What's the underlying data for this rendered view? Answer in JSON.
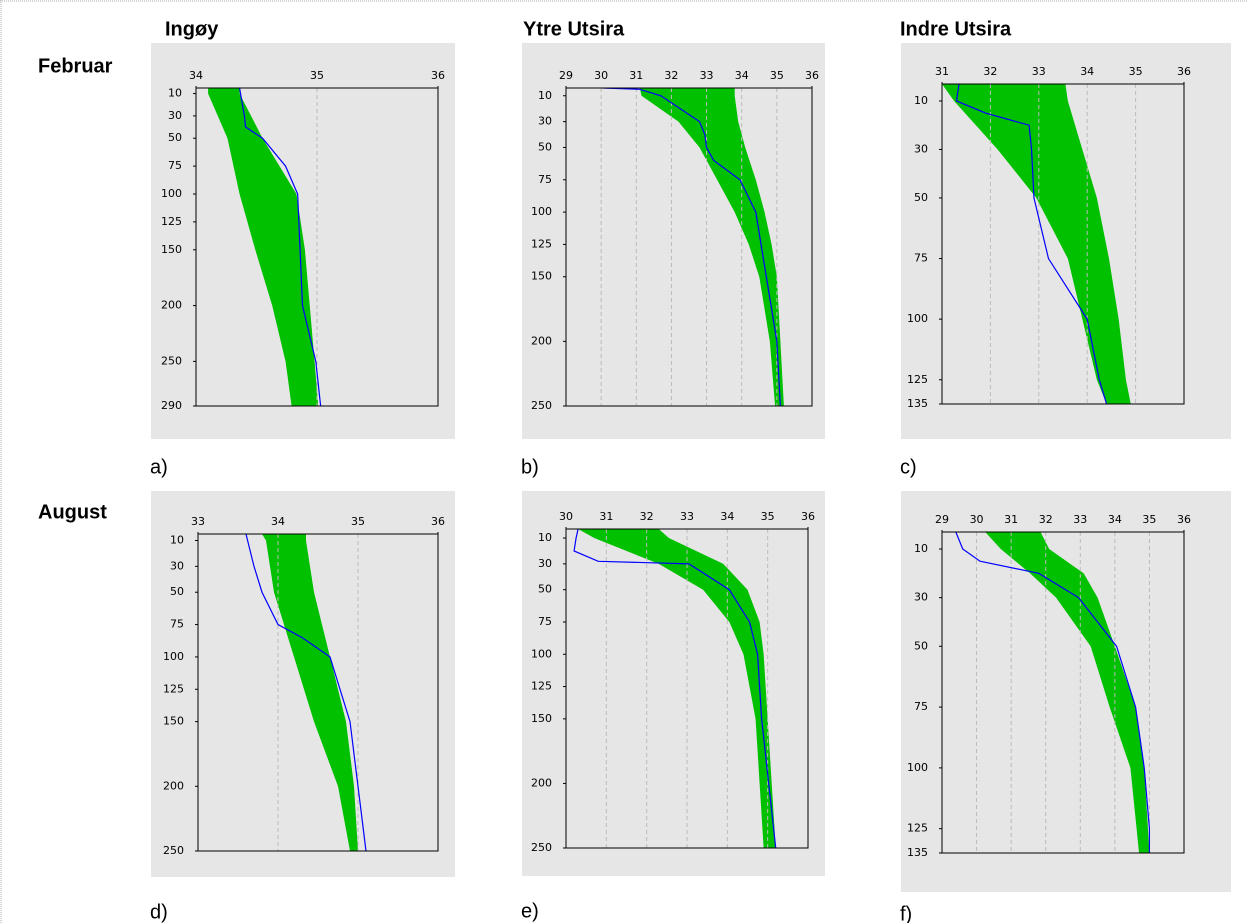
{
  "header": {
    "columns": [
      "Ingøy",
      "Ytre Utsira",
      "Indre Utsira"
    ],
    "rows": [
      "Februar",
      "August"
    ]
  },
  "chart_data": [
    {
      "type": "profile",
      "label": "a)",
      "x_axis_position": "top",
      "y_inverted": true,
      "grid": true,
      "xlim": [
        34,
        36
      ],
      "xticks": [
        34,
        35,
        36
      ],
      "ylim": [
        5,
        290
      ],
      "yticks": [
        10,
        30,
        50,
        75,
        100,
        125,
        150,
        200,
        250,
        290
      ],
      "band_color": "#00c000",
      "line_color": "#0000ff",
      "depth": [
        5,
        10,
        50,
        100,
        150,
        200,
        250,
        290
      ],
      "band_low": [
        34.1,
        34.1,
        34.26,
        34.36,
        34.49,
        34.63,
        34.74,
        34.79
      ],
      "band_high": [
        34.36,
        34.36,
        34.55,
        34.83,
        34.9,
        34.94,
        34.98,
        35.01
      ],
      "line_depth": [
        5,
        30,
        40,
        50,
        75,
        100,
        200,
        250,
        290
      ],
      "line_values": [
        34.36,
        34.4,
        34.41,
        34.55,
        34.74,
        34.84,
        34.88,
        34.99,
        35.03
      ]
    },
    {
      "type": "profile",
      "label": "b)",
      "x_axis_position": "top",
      "y_inverted": true,
      "grid": true,
      "xlim": [
        29,
        36
      ],
      "xticks": [
        29,
        30,
        31,
        32,
        33,
        34,
        35,
        36
      ],
      "ylim": [
        4,
        250
      ],
      "yticks": [
        10,
        30,
        50,
        75,
        100,
        125,
        150,
        200,
        250
      ],
      "band_color": "#00c000",
      "line_color": "#0000ff",
      "depth": [
        4,
        10,
        30,
        50,
        75,
        100,
        125,
        150,
        200,
        250
      ],
      "band_low": [
        31.1,
        31.15,
        32.2,
        32.8,
        33.3,
        33.8,
        34.2,
        34.5,
        34.8,
        34.95
      ],
      "band_high": [
        33.8,
        33.8,
        33.9,
        34.1,
        34.4,
        34.65,
        34.85,
        35.0,
        35.1,
        35.2
      ],
      "line_depth": [
        4,
        5,
        10,
        30,
        40,
        50,
        60,
        75,
        100,
        150,
        200,
        250
      ],
      "line_values": [
        30.05,
        31.1,
        31.7,
        32.8,
        32.95,
        33.0,
        33.2,
        33.95,
        34.4,
        34.7,
        35.0,
        35.1
      ]
    },
    {
      "type": "profile",
      "label": "c)",
      "x_axis_position": "top",
      "y_inverted": true,
      "grid": true,
      "xlim": [
        31,
        36
      ],
      "xticks": [
        31,
        32,
        33,
        34,
        35,
        36
      ],
      "ylim": [
        3,
        135
      ],
      "yticks": [
        10,
        30,
        50,
        75,
        100,
        125,
        135
      ],
      "band_color": "#00c000",
      "line_color": "#0000ff",
      "depth": [
        3,
        10,
        30,
        50,
        75,
        100,
        125,
        135
      ],
      "band_low": [
        31.0,
        31.25,
        32.15,
        32.95,
        33.6,
        33.9,
        34.2,
        34.4
      ],
      "band_high": [
        33.55,
        33.6,
        33.9,
        34.2,
        34.45,
        34.65,
        34.8,
        34.9
      ],
      "line_depth": [
        3,
        10,
        15,
        20,
        30,
        50,
        75,
        100,
        125,
        135
      ],
      "line_values": [
        31.35,
        31.3,
        31.9,
        32.8,
        32.85,
        32.9,
        33.2,
        34.0,
        34.25,
        34.4
      ]
    },
    {
      "type": "profile",
      "label": "d)",
      "x_axis_position": "top",
      "y_inverted": true,
      "grid": true,
      "xlim": [
        33,
        36
      ],
      "xticks": [
        33,
        34,
        35,
        36
      ],
      "ylim": [
        5,
        250
      ],
      "yticks": [
        10,
        30,
        50,
        75,
        100,
        125,
        150,
        200,
        250
      ],
      "band_color": "#00c000",
      "line_color": "#0000ff",
      "depth": [
        5,
        10,
        50,
        100,
        150,
        200,
        250
      ],
      "band_low": [
        33.8,
        33.85,
        33.95,
        34.2,
        34.45,
        34.75,
        34.9
      ],
      "band_high": [
        34.35,
        34.35,
        34.45,
        34.65,
        34.85,
        34.95,
        35.0
      ],
      "line_depth": [
        5,
        10,
        30,
        50,
        75,
        85,
        100,
        150,
        200,
        250
      ],
      "line_values": [
        33.6,
        33.62,
        33.7,
        33.8,
        34.0,
        34.3,
        34.65,
        34.9,
        35.0,
        35.1
      ]
    },
    {
      "type": "profile",
      "label": "e)",
      "x_axis_position": "top",
      "y_inverted": true,
      "grid": true,
      "xlim": [
        30,
        36
      ],
      "xticks": [
        30,
        31,
        32,
        33,
        34,
        35,
        36
      ],
      "ylim": [
        3,
        250
      ],
      "yticks": [
        10,
        30,
        50,
        75,
        100,
        125,
        150,
        200,
        250
      ],
      "band_color": "#00c000",
      "line_color": "#0000ff",
      "depth": [
        3,
        10,
        30,
        50,
        75,
        100,
        150,
        250
      ],
      "band_low": [
        30.3,
        30.7,
        32.3,
        33.4,
        34.05,
        34.4,
        34.7,
        34.9
      ],
      "band_high": [
        32.3,
        32.55,
        33.9,
        34.5,
        34.8,
        34.9,
        35.0,
        35.2
      ],
      "line_depth": [
        3,
        10,
        20,
        28,
        30,
        50,
        75,
        100,
        150,
        250
      ],
      "line_values": [
        30.3,
        30.25,
        30.2,
        30.8,
        33.05,
        34.05,
        34.55,
        34.75,
        34.85,
        35.2
      ]
    },
    {
      "type": "profile",
      "label": "f)",
      "x_axis_position": "top",
      "y_inverted": true,
      "grid": true,
      "xlim": [
        29,
        36
      ],
      "xticks": [
        29,
        30,
        31,
        32,
        33,
        34,
        35,
        36
      ],
      "ylim": [
        3,
        135
      ],
      "yticks": [
        10,
        30,
        50,
        75,
        100,
        125,
        135
      ],
      "band_color": "#00c000",
      "line_color": "#0000ff",
      "depth": [
        3,
        10,
        20,
        30,
        50,
        75,
        100,
        135
      ],
      "band_low": [
        30.25,
        30.7,
        31.55,
        32.3,
        33.3,
        33.85,
        34.45,
        34.7
      ],
      "band_high": [
        31.85,
        32.1,
        33.1,
        33.5,
        34.0,
        34.6,
        34.85,
        35.0
      ],
      "line_depth": [
        3,
        10,
        15,
        20,
        30,
        50,
        75,
        100,
        125,
        135
      ],
      "line_values": [
        29.4,
        29.6,
        30.1,
        31.8,
        32.95,
        34.05,
        34.6,
        34.85,
        35.0,
        35.0
      ]
    }
  ]
}
